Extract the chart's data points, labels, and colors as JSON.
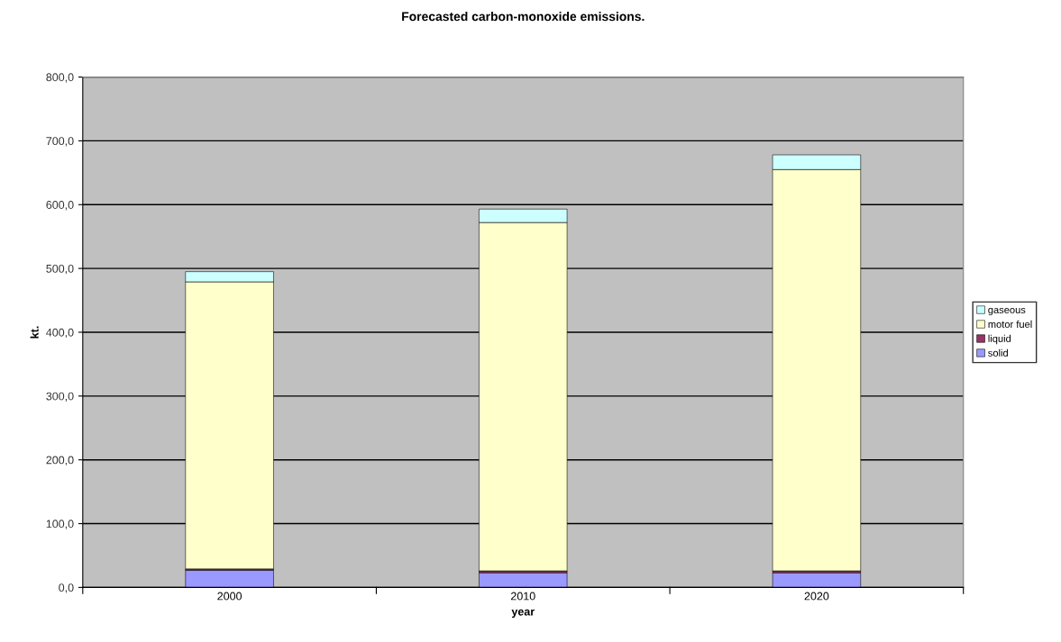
{
  "chart_data": {
    "type": "bar",
    "title": "Forecasted carbon-monoxide emissions.",
    "xlabel": "year",
    "ylabel": "kt.",
    "categories": [
      "2000",
      "2010",
      "2020"
    ],
    "stacked": true,
    "series": [
      {
        "name": "solid",
        "color": "#9999ff",
        "values": [
          27,
          23,
          23
        ]
      },
      {
        "name": "liquid",
        "color": "#993366",
        "values": [
          2,
          3,
          3
        ]
      },
      {
        "name": "motor fuel",
        "color": "#ffffcc",
        "values": [
          450,
          546,
          629
        ]
      },
      {
        "name": "gaseous",
        "color": "#ccffff",
        "values": [
          16,
          21,
          23
        ]
      }
    ],
    "ylim": [
      0,
      800
    ],
    "yticks": [
      {
        "value": 0,
        "label": "0,0"
      },
      {
        "value": 100,
        "label": "100,0"
      },
      {
        "value": 200,
        "label": "200,0"
      },
      {
        "value": 300,
        "label": "300,0"
      },
      {
        "value": 400,
        "label": "400,0"
      },
      {
        "value": 500,
        "label": "500,0"
      },
      {
        "value": 600,
        "label": "600,0"
      },
      {
        "value": 700,
        "label": "700,0"
      },
      {
        "value": 800,
        "label": "800,0"
      }
    ],
    "grid": "y",
    "legend": "right"
  }
}
